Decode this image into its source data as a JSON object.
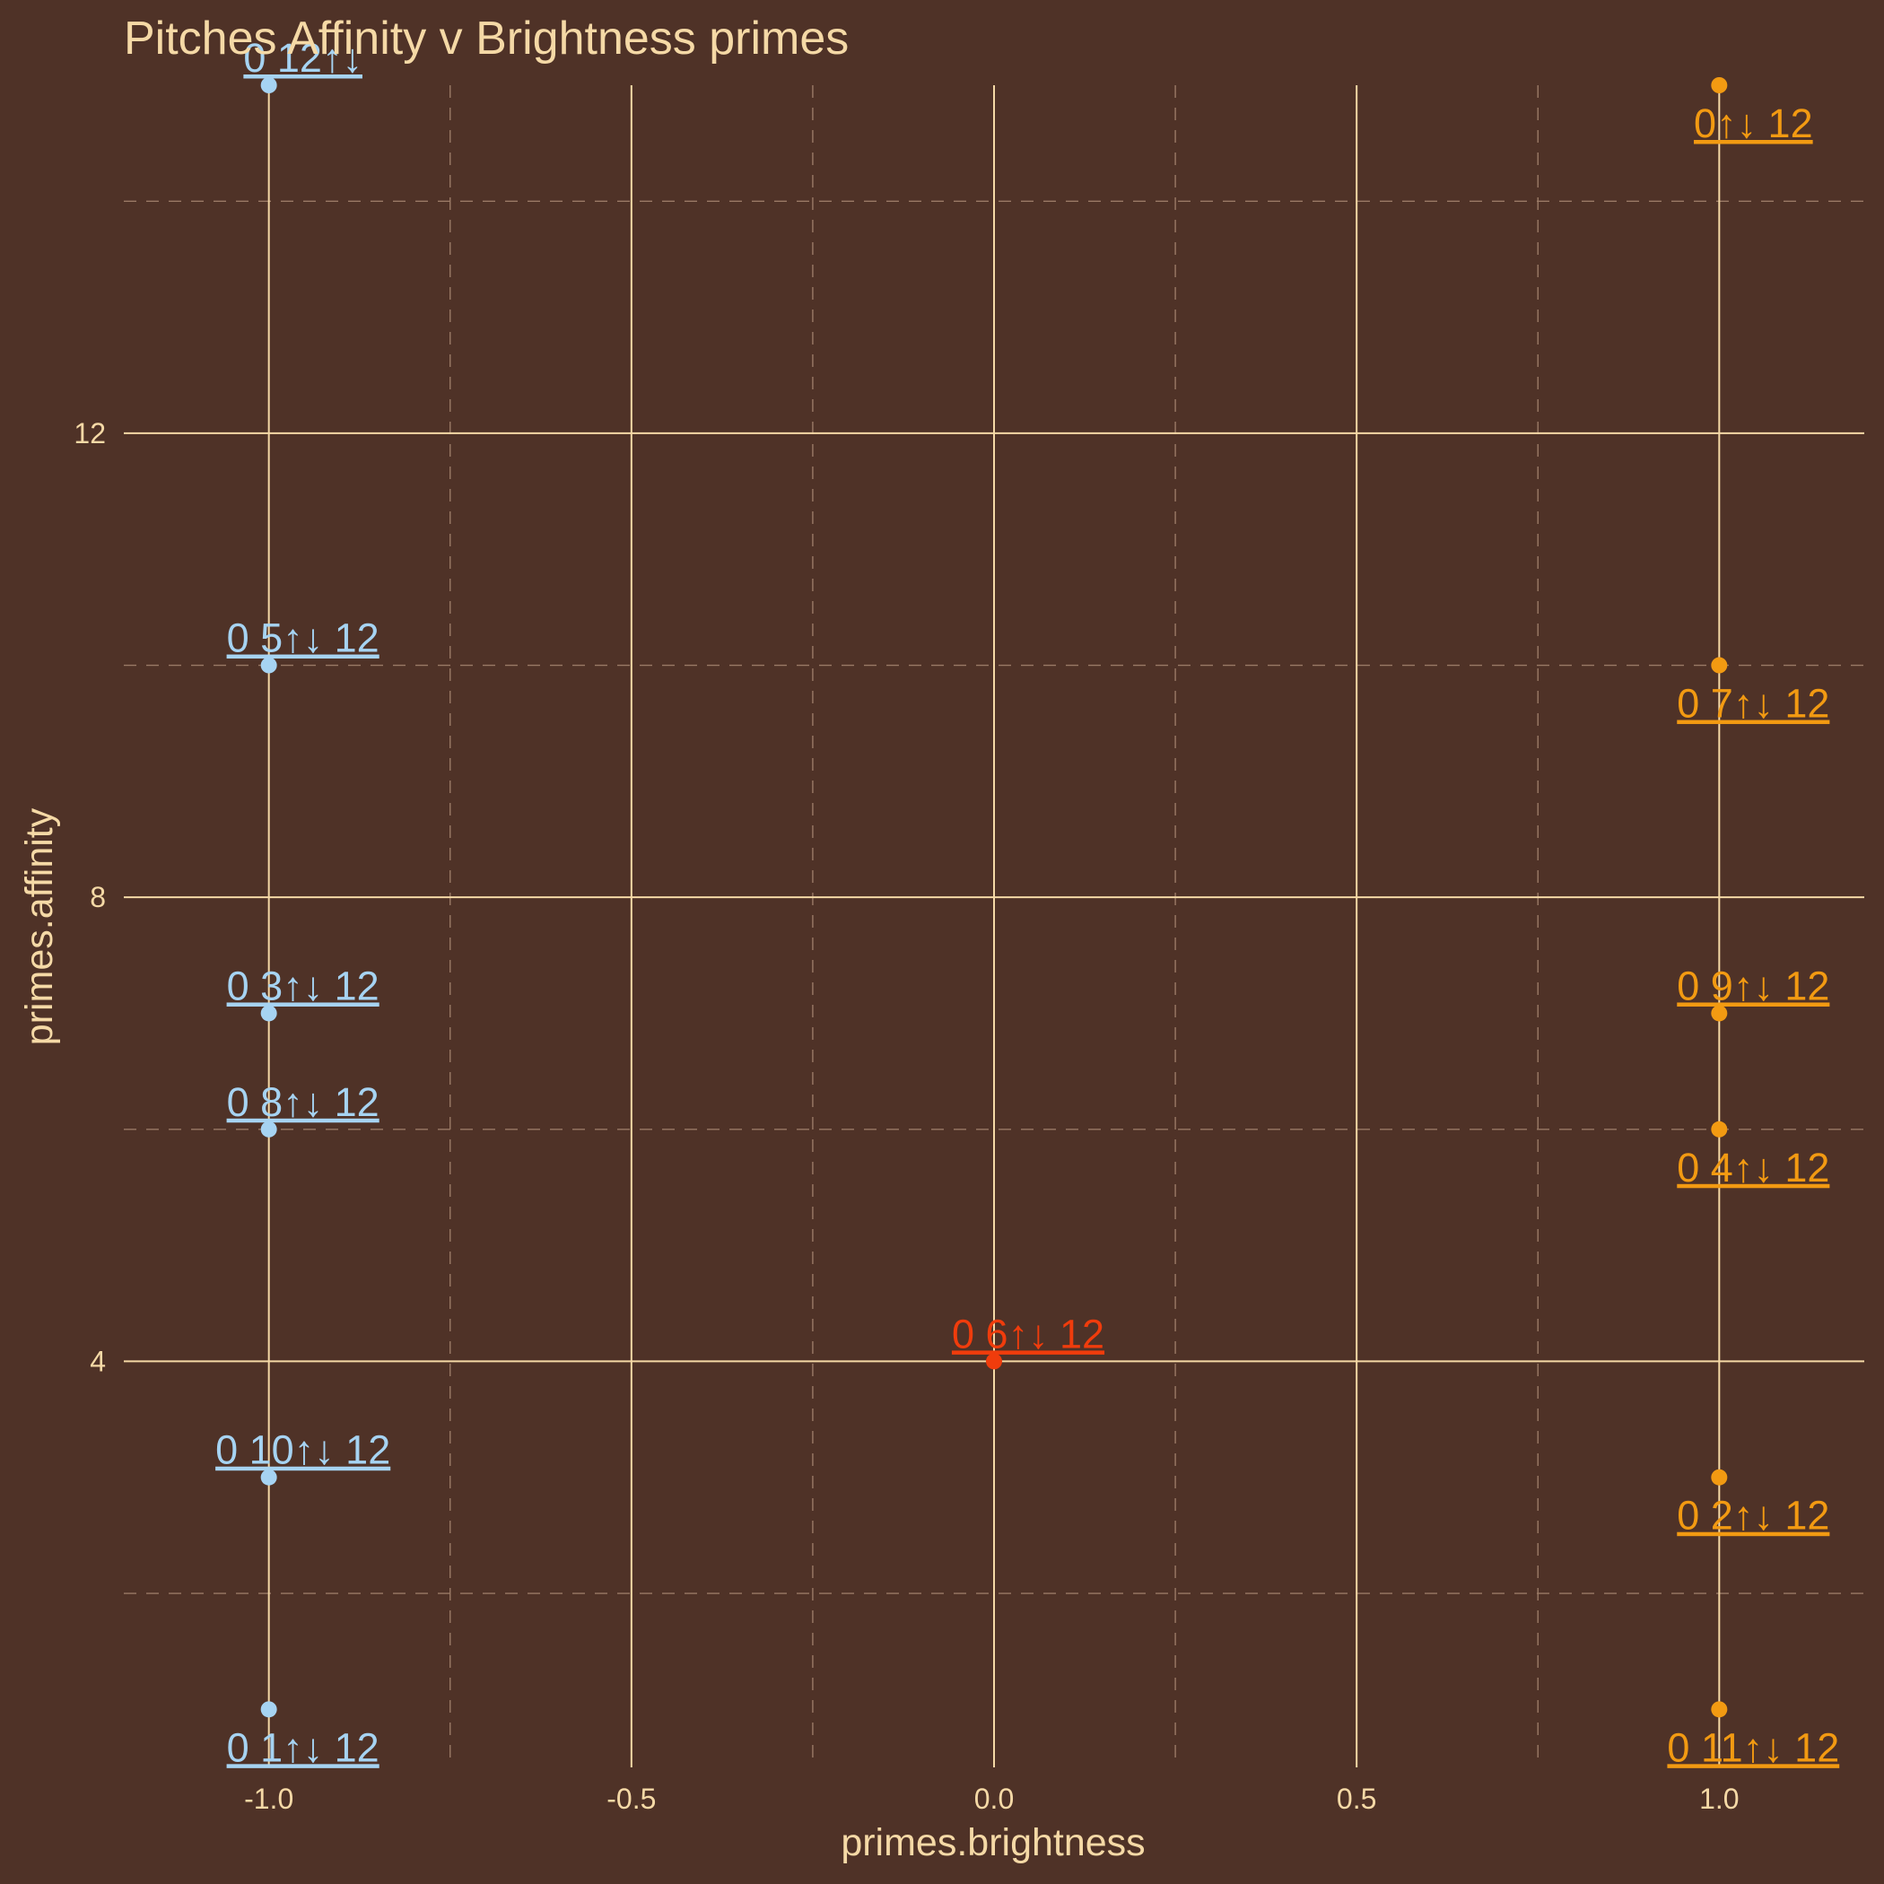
{
  "chart_data": {
    "type": "scatter",
    "title": "Pitches Affinity v Brightness primes",
    "xlabel": "primes.brightness",
    "ylabel": "primes.affinity",
    "xlim": [
      -1.2,
      1.2
    ],
    "ylim": [
      0.5,
      15.0
    ],
    "x_ticks": [
      -1.0,
      -0.5,
      0.0,
      0.5,
      1.0
    ],
    "x_tick_labels": [
      "-1.0",
      "-0.5",
      "0.0",
      "0.5",
      "1.0"
    ],
    "y_ticks": [
      4,
      8,
      12
    ],
    "y_tick_labels": [
      "4",
      "8",
      "12"
    ],
    "grid": true,
    "legend": "none",
    "colors": {
      "negative": "#a6d3f2",
      "zero": "#f03c0c",
      "positive": "#f29a12"
    },
    "points": [
      {
        "x": -1,
        "y": 15,
        "label": "0 12↑↓",
        "group": "negative",
        "label_pos": "above"
      },
      {
        "x": -1,
        "y": 10,
        "label": "0 5↑↓ 12",
        "group": "negative",
        "label_pos": "above"
      },
      {
        "x": -1,
        "y": 7,
        "label": "0 3↑↓ 12",
        "group": "negative",
        "label_pos": "above"
      },
      {
        "x": -1,
        "y": 6,
        "label": "0 8↑↓ 12",
        "group": "negative",
        "label_pos": "above"
      },
      {
        "x": -1,
        "y": 3,
        "label": "0 10↑↓ 12",
        "group": "negative",
        "label_pos": "above"
      },
      {
        "x": -1,
        "y": 1,
        "label": "0 1↑↓ 12",
        "group": "negative",
        "label_pos": "below"
      },
      {
        "x": 0,
        "y": 4,
        "label": "0 6↑↓ 12",
        "group": "zero",
        "label_pos": "above"
      },
      {
        "x": 1,
        "y": 15,
        "label": "0↑↓ 12",
        "group": "positive",
        "label_pos": "below"
      },
      {
        "x": 1,
        "y": 10,
        "label": "0 7↑↓ 12",
        "group": "positive",
        "label_pos": "below"
      },
      {
        "x": 1,
        "y": 7,
        "label": "0 9↑↓ 12",
        "group": "positive",
        "label_pos": "above"
      },
      {
        "x": 1,
        "y": 6,
        "label": "0 4↑↓ 12",
        "group": "positive",
        "label_pos": "below"
      },
      {
        "x": 1,
        "y": 3,
        "label": "0 2↑↓ 12",
        "group": "positive",
        "label_pos": "below"
      },
      {
        "x": 1,
        "y": 1,
        "label": "0 11↑↓ 12",
        "group": "positive",
        "label_pos": "below"
      }
    ]
  }
}
